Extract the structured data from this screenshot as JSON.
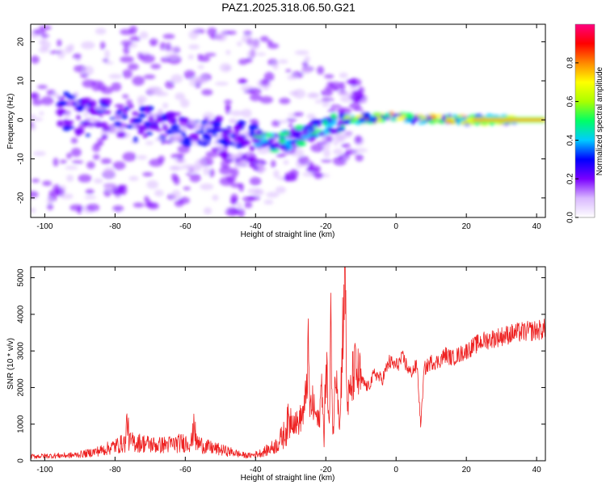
{
  "title": "PAZ1.2025.318.06.50.G21",
  "chart_data": [
    {
      "type": "heatmap",
      "name": "spectrogram",
      "xlabel": "Height of straight line (km)",
      "ylabel": "Frequency (Hz)",
      "xlim": [
        -104,
        42.5
      ],
      "ylim": [
        -25,
        24.5
      ],
      "xticks": [
        -100,
        -80,
        -60,
        -40,
        -20,
        0,
        20,
        40
      ],
      "yticks": [
        -20,
        -10,
        0,
        10,
        20
      ],
      "ridge": {
        "x": [
          -95,
          -88,
          -80,
          -72,
          -64,
          -56,
          -48,
          -42,
          -36,
          -30,
          -24,
          -18,
          -12,
          -6,
          0,
          6,
          12,
          18,
          24,
          30,
          36,
          42
        ],
        "y": [
          2,
          1,
          0,
          -1,
          -2,
          -3,
          -3,
          -4,
          -6,
          -5,
          -3,
          -1,
          0,
          0.5,
          1,
          0,
          0.5,
          0,
          0,
          0,
          0,
          0
        ]
      },
      "colorbar": {
        "label": "Normalized spectral amplitude",
        "ticks": [
          0.0,
          0.2,
          0.4,
          0.6,
          0.8
        ],
        "tick_labels": [
          "0.0",
          "0.2",
          "0.4",
          "0.6",
          "0.8"
        ],
        "range": [
          0,
          1
        ],
        "colors": [
          "#ffffff",
          "#d9b8ff",
          "#7a00ff",
          "#0000ff",
          "#00ccff",
          "#00ff66",
          "#aaff00",
          "#ffff00",
          "#ff8800",
          "#ff0000",
          "#ff0080"
        ]
      }
    },
    {
      "type": "line",
      "name": "snr",
      "xlabel": "Height of straight line (km)",
      "ylabel": "SNR (10 * v/v)",
      "xlim": [
        -104,
        42.5
      ],
      "ylim": [
        0,
        5300
      ],
      "xticks": [
        -100,
        -80,
        -60,
        -40,
        -20,
        0,
        20,
        40
      ],
      "yticks": [
        0,
        1000,
        2000,
        3000,
        4000,
        5000
      ],
      "line_color": "#ee2222",
      "series": [
        {
          "name": "SNR",
          "x": [
            -104,
            -100,
            -96,
            -92,
            -88,
            -84,
            -80,
            -77,
            -76.5,
            -76,
            -72,
            -68,
            -64,
            -60,
            -58,
            -57.5,
            -57,
            -54,
            -50,
            -46,
            -44,
            -42,
            -40,
            -38,
            -36,
            -34,
            -32,
            -30,
            -28,
            -26,
            -25,
            -24.5,
            -24,
            -22,
            -21,
            -20.5,
            -20,
            -19,
            -18.5,
            -18,
            -17,
            -16,
            -15,
            -14.5,
            -14,
            -13,
            -12,
            -10,
            -8,
            -6,
            -4,
            -2,
            0,
            2,
            4,
            6,
            7,
            8,
            10,
            12,
            14,
            16,
            20,
            24,
            28,
            32,
            36,
            40,
            42.5
          ],
          "y": [
            120,
            130,
            140,
            150,
            200,
            280,
            400,
            500,
            1250,
            520,
            480,
            420,
            450,
            500,
            520,
            1300,
            500,
            380,
            300,
            220,
            160,
            140,
            170,
            230,
            320,
            430,
            700,
            1200,
            1000,
            1400,
            2900,
            1300,
            1600,
            1000,
            2300,
            300,
            3000,
            800,
            4000,
            600,
            2800,
            900,
            4300,
            5300,
            1600,
            1800,
            2500,
            2200,
            2000,
            2400,
            2200,
            2700,
            2600,
            2800,
            2400,
            2600,
            950,
            2500,
            2700,
            2700,
            2900,
            2800,
            3000,
            3250,
            3350,
            3450,
            3520,
            3560,
            3600
          ]
        }
      ]
    }
  ]
}
